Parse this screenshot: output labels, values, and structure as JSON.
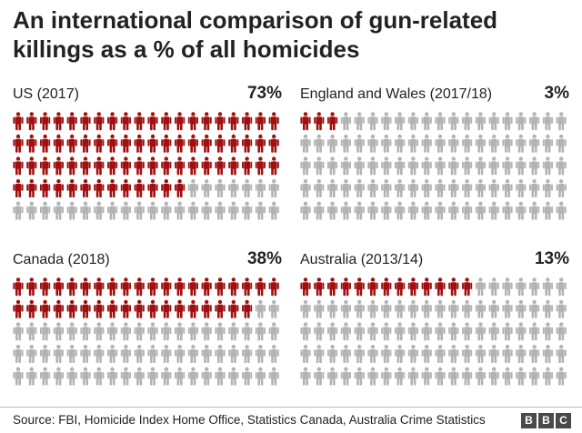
{
  "title": "An international comparison of gun-related killings as a % of all homicides",
  "source": "Source: FBI, Homicide Index Home Office, Statistics Canada, Australia Crime Statistics",
  "brand": [
    "B",
    "B",
    "C"
  ],
  "colors": {
    "highlight": "#a01010",
    "base": "#b3b3b3"
  },
  "chart_data": [
    {
      "type": "pictogram",
      "label": "US (2017)",
      "percent_label": "73%",
      "value": 73,
      "total": 100,
      "grid": [
        20,
        5
      ]
    },
    {
      "type": "pictogram",
      "label": "England and Wales (2017/18)",
      "percent_label": "3%",
      "value": 3,
      "total": 100,
      "grid": [
        20,
        5
      ]
    },
    {
      "type": "pictogram",
      "label": "Canada (2018)",
      "percent_label": "38%",
      "value": 38,
      "total": 100,
      "grid": [
        20,
        5
      ]
    },
    {
      "type": "pictogram",
      "label": "Australia (2013/14)",
      "percent_label": "13%",
      "value": 13,
      "total": 100,
      "grid": [
        20,
        5
      ]
    }
  ]
}
